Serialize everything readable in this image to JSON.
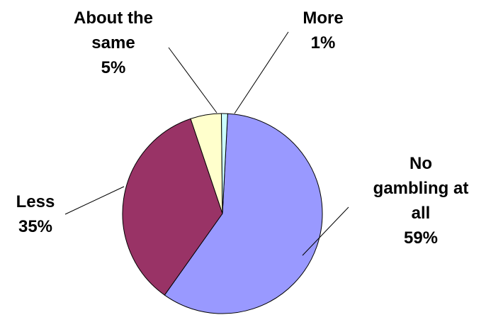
{
  "chart_data": {
    "type": "pie",
    "categories": [
      "No gambling at all",
      "Less",
      "About the same",
      "More"
    ],
    "values": [
      59,
      35,
      5,
      1
    ],
    "colors": [
      "#9999FF",
      "#993366",
      "#FFFFCC",
      "#CCFFFF"
    ],
    "labels": [
      {
        "lines": [
          "No",
          "gambling at",
          "all",
          "59%"
        ]
      },
      {
        "lines": [
          "Less",
          "35%"
        ]
      },
      {
        "lines": [
          "About the",
          "same",
          "5%"
        ]
      },
      {
        "lines": [
          "More",
          "1%"
        ]
      }
    ],
    "legend": "none"
  }
}
